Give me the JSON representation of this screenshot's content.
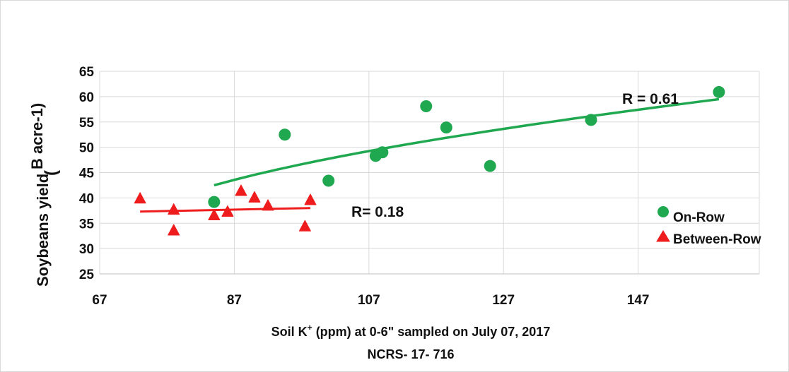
{
  "chart_data": {
    "type": "scatter",
    "xlabel": "Soil  K",
    "xlabel_sup": "+",
    "xlabel_rest": " (ppm) at 0-6\" sampled on July 07, 2017",
    "subtitle": "NCRS- 17- 716",
    "ylabel_main": "Soybeans yield",
    "ylabel_paren": "(",
    "ylabel_unit": "B  acre-1)",
    "xlim": [
      67,
      165
    ],
    "ylim": [
      25,
      65
    ],
    "xticks": [
      "67",
      "87",
      "107",
      "127",
      "147"
    ],
    "yticks": [
      "25",
      "30",
      "35",
      "40",
      "45",
      "50",
      "55",
      "60",
      "65"
    ],
    "grid": true,
    "legend_position": "right",
    "series": [
      {
        "name": "On-Row",
        "marker": "circle",
        "color": "#1fa84f",
        "points": [
          [
            84,
            39.2
          ],
          [
            94.5,
            52.5
          ],
          [
            101,
            43.4
          ],
          [
            108,
            48.3
          ],
          [
            109,
            49
          ],
          [
            115.5,
            58.1
          ],
          [
            118.5,
            53.9
          ],
          [
            125,
            46.3
          ],
          [
            140,
            55.4
          ],
          [
            159,
            60.9
          ]
        ],
        "trend": [
          [
            84,
            42.5
          ],
          [
            159,
            59.5
          ]
        ],
        "r_label": "R = 0.61"
      },
      {
        "name": "Between-Row",
        "marker": "triangle",
        "color": "#ee1c1c",
        "points": [
          [
            73,
            39.8
          ],
          [
            78,
            37.6
          ],
          [
            78,
            33.5
          ],
          [
            84,
            36.5
          ],
          [
            86,
            37.2
          ],
          [
            88,
            41.3
          ],
          [
            90,
            40
          ],
          [
            92,
            38.4
          ],
          [
            97.5,
            34.3
          ],
          [
            98.3,
            39.5
          ]
        ],
        "trend": [
          [
            73,
            37.3
          ],
          [
            98.3,
            38
          ]
        ],
        "r_label": "R= 0.18"
      }
    ]
  }
}
